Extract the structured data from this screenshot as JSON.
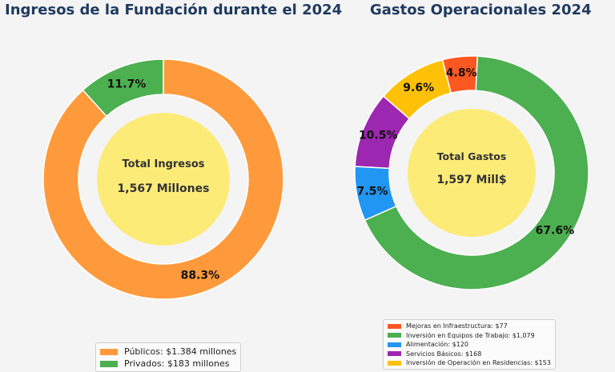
{
  "chart_data": [
    {
      "type": "donut",
      "title": "Ingresos de la Fundación durante el 2024",
      "center_label": "Total Ingresos",
      "center_value": "1,567 Millones",
      "categories": [
        "Públicos",
        "Privados"
      ],
      "values": [
        1384,
        183
      ],
      "percent_labels": [
        "88.3%",
        "11.7%"
      ],
      "colors": [
        "#ff9a3c",
        "#4caf50"
      ],
      "center_color": "#fdeb78",
      "legend": [
        "Públicos: $1.384 millones",
        "Privados: $183 millones"
      ],
      "legend_position": "bottom"
    },
    {
      "type": "donut",
      "title": "Gastos Operacionales 2024",
      "center_label": "Total Gastos",
      "center_value": "1,597 Mill$",
      "categories": [
        "Mejoras en Infraestructura",
        "Inversión en Equipos de Trabajo",
        "Alimentación",
        "Servicios Básicos",
        "Inversión de Operación en Residencias"
      ],
      "values": [
        77,
        1079,
        120,
        168,
        153
      ],
      "percent_labels": [
        "4.8%",
        "67.6%",
        "7.5%",
        "10.5%",
        "9.6%"
      ],
      "colors": [
        "#ff5722",
        "#4caf50",
        "#2196f3",
        "#9c27b0",
        "#ffc107"
      ],
      "center_color": "#fdeb78",
      "legend": [
        "Mejoras en Infraestructura: $77",
        "Inversión en Equipos de Trabajo: $1,079",
        "Alimentación: $120",
        "Servicios Básicos: $168",
        "Inversión de Operación en Residencias: $153"
      ],
      "legend_position": "bottom"
    }
  ]
}
